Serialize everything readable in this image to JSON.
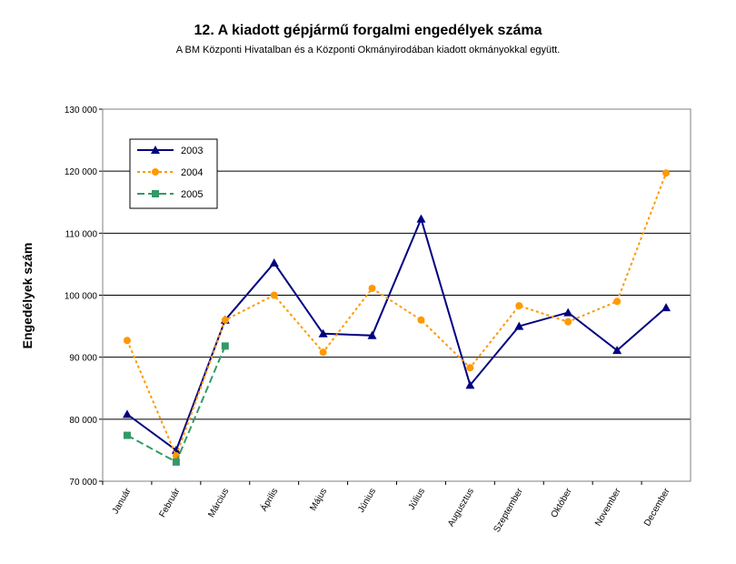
{
  "chart_data": {
    "type": "line",
    "title": "12. A  kiadott gépjármű forgalmi engedélyek száma",
    "subtitle": "A BM Központi Hivatalban és a Központi Okmányirodában kiadott okmányokkal együtt.",
    "y_label": "Engedélyek szám",
    "categories": [
      "Január",
      "Február",
      "Március",
      "Április",
      "Május",
      "Június",
      "Július",
      "Augusztus",
      "Szeptember",
      "Október",
      "November",
      "December"
    ],
    "series": [
      {
        "name": "2003",
        "color": "#000080",
        "dash": "solid",
        "marker": "triangle",
        "values": [
          80800,
          75000,
          96000,
          105200,
          93800,
          93500,
          112300,
          85500,
          95000,
          97200,
          91100,
          98000
        ]
      },
      {
        "name": "2004",
        "color": "#ff9900",
        "dash": "dotted",
        "marker": "circle",
        "values": [
          92700,
          74100,
          96000,
          100000,
          90800,
          101100,
          96000,
          88300,
          98300,
          95700,
          99000,
          119700
        ]
      },
      {
        "name": "2005",
        "color": "#339966",
        "dash": "dashed",
        "marker": "square",
        "values": [
          77400,
          73100,
          91800,
          null,
          null,
          null,
          null,
          null,
          null,
          null,
          null,
          null
        ]
      }
    ],
    "ylim": [
      70000,
      130000
    ],
    "yticks": [
      {
        "value": 70000,
        "label": "70 000"
      },
      {
        "value": 80000,
        "label": "80 000"
      },
      {
        "value": 90000,
        "label": "90 000"
      },
      {
        "value": 100000,
        "label": "100 000"
      },
      {
        "value": 110000,
        "label": "110 000"
      },
      {
        "value": 120000,
        "label": "120 000"
      },
      {
        "value": 130000,
        "label": "130 000"
      }
    ],
    "grid": true,
    "legend": "upper-left"
  }
}
